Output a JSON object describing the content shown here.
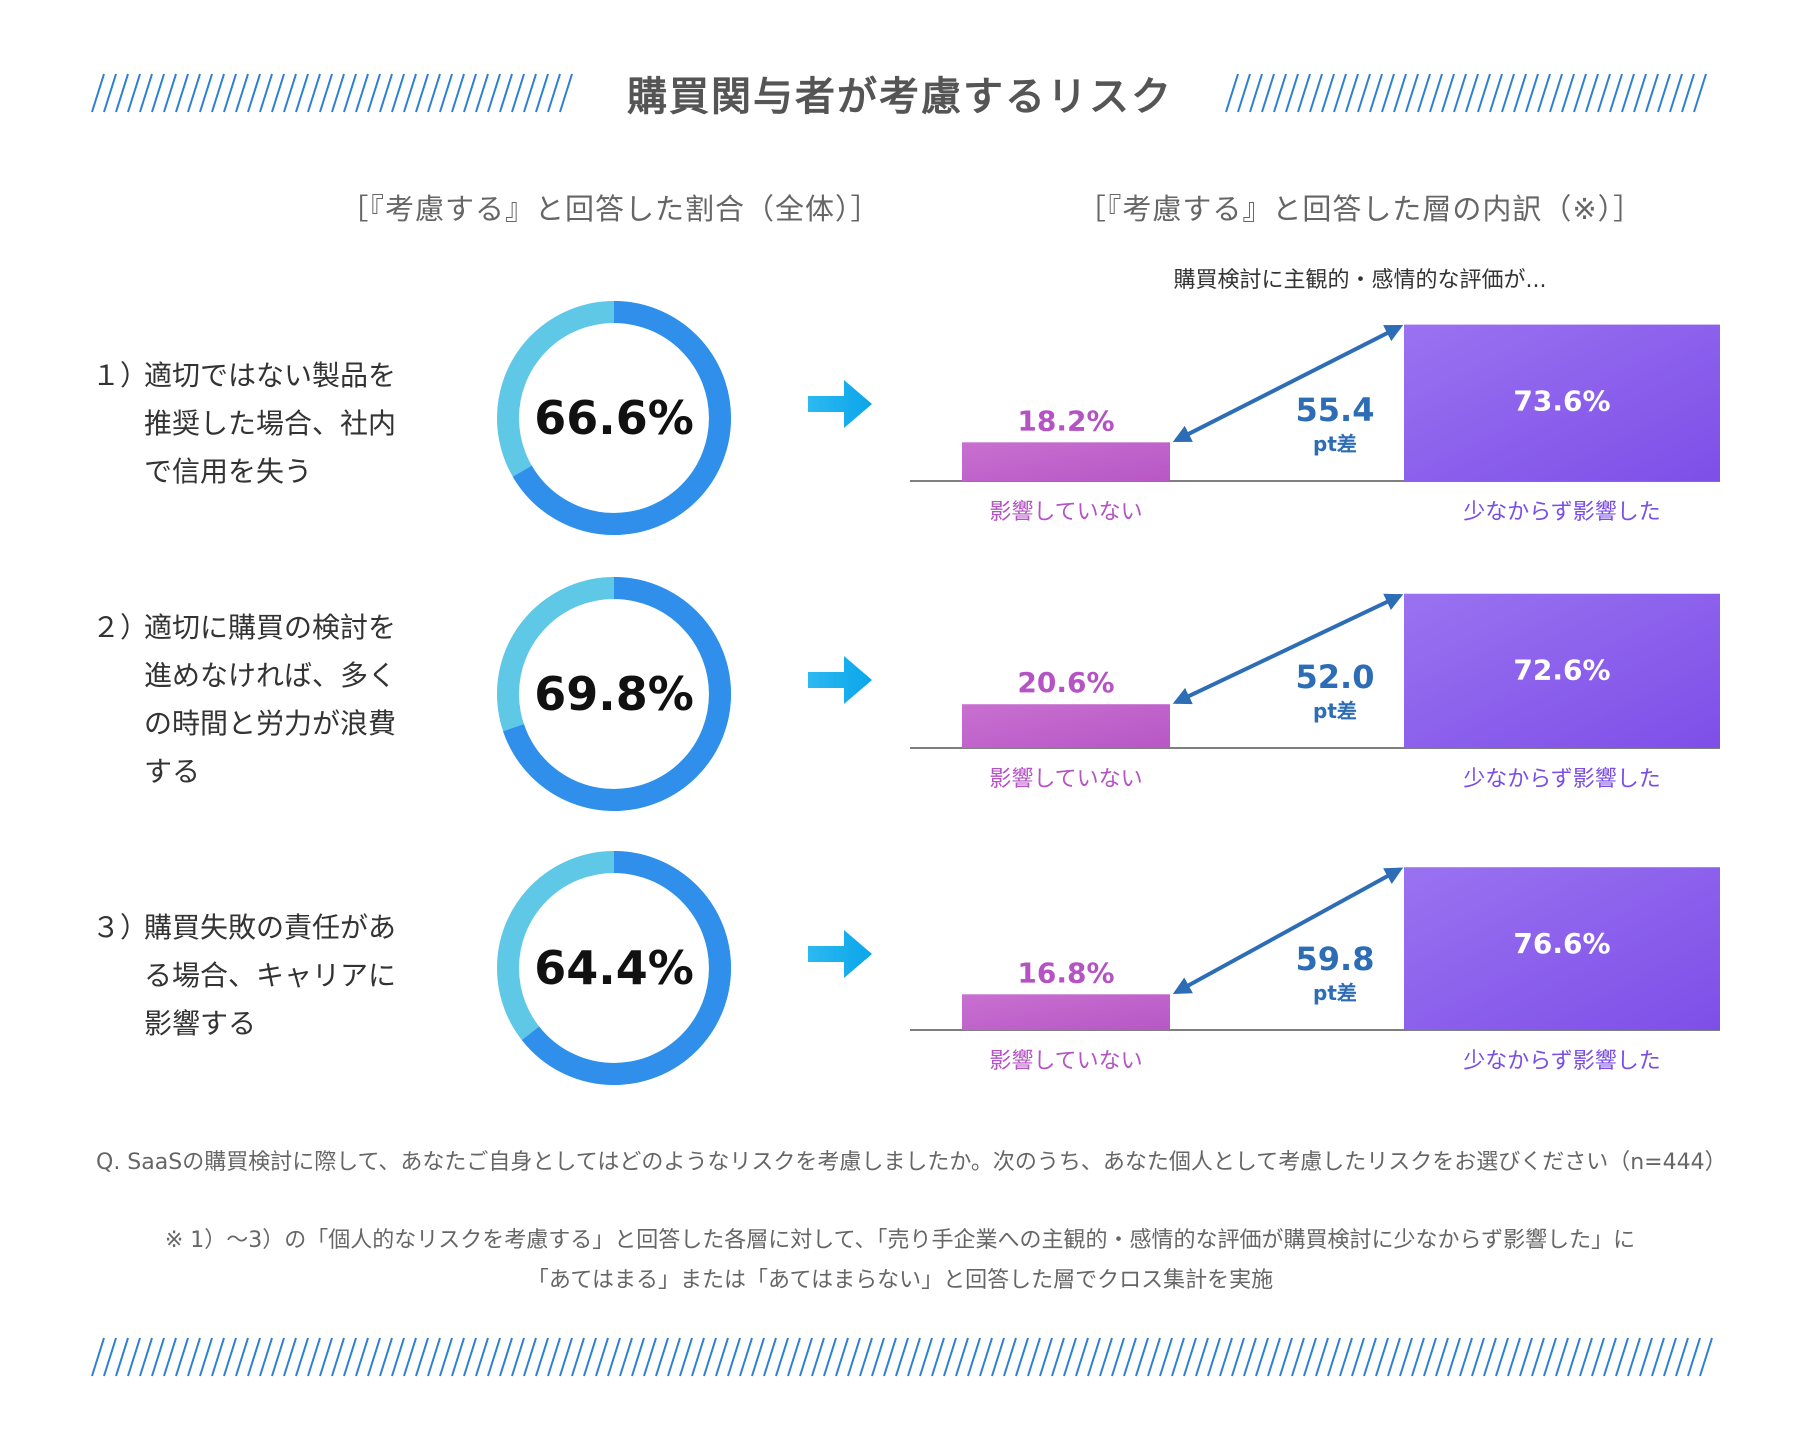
{
  "title": "購買関与者が考慮するリスク",
  "left_heading": "［『考慮する』と回答した割合（全体）］",
  "right_heading": "［『考慮する』と回答した層の内訳（※）］",
  "right_subheading": "購買検討に主観的・感情的な評価が...",
  "rows": [
    {
      "number": "１）",
      "label_lines": [
        "適切ではない製品を",
        "推奨した場合、社内",
        "で信用を失う"
      ]
    },
    {
      "number": "２）",
      "label_lines": [
        "適切に購買の検討を",
        "進めなければ、多く",
        "の時間と労力が浪費",
        "する"
      ]
    },
    {
      "number": "３）",
      "label_lines": [
        "購買失敗の責任があ",
        "る場合、キャリアに",
        "影響する"
      ]
    }
  ],
  "footnote_question": "Q. SaaSの購買検討に際して、あなたご自身としてはどのようなリスクを考慮しましたか。次のうち、あなた個人として考慮したリスクをお選びください（n=444）",
  "footnote_note_line1": "※ 1）〜3）の「個人的なリスクを考慮する」と回答した各層に対して、「売り手企業への主観的・感情的な評価が購買検討に少なからず影響した」に",
  "footnote_note_line2": "「あてはまる」または「あてはまらない」と回答した層でクロス集計を実施",
  "colors": {
    "ring_light": "#5ec8e6",
    "ring_dark": "#2f8fea",
    "ring_track": "#e8f2fb",
    "arrow_cyan": "#19b6ee",
    "bar_low": "#c163cc",
    "bar_high": "#8659ee",
    "label_low": "#b552c4",
    "label_high": "#7a4ee6",
    "diff": "#2d6db5",
    "stripe": "#2b7fd4"
  },
  "chart_data": [
    {
      "type": "pie",
      "subtype": "donut",
      "value_label": "66.6%",
      "value": 66.6,
      "bars": {
        "type": "bar",
        "categories": [
          "影響していない",
          "少なからず影響した"
        ],
        "values": [
          18.2,
          73.6
        ],
        "value_labels": [
          "18.2%",
          "73.6%"
        ],
        "diff_value": "55.4",
        "diff_unit": "pt差",
        "ylim": [
          0,
          80
        ]
      }
    },
    {
      "type": "pie",
      "subtype": "donut",
      "value_label": "69.8%",
      "value": 69.8,
      "bars": {
        "type": "bar",
        "categories": [
          "影響していない",
          "少なからず影響した"
        ],
        "values": [
          20.6,
          72.6
        ],
        "value_labels": [
          "20.6%",
          "72.6%"
        ],
        "diff_value": "52.0",
        "diff_unit": "pt差",
        "ylim": [
          0,
          80
        ]
      }
    },
    {
      "type": "pie",
      "subtype": "donut",
      "value_label": "64.4%",
      "value": 64.4,
      "bars": {
        "type": "bar",
        "categories": [
          "影響していない",
          "少なからず影響した"
        ],
        "values": [
          16.8,
          76.6
        ],
        "value_labels": [
          "16.8%",
          "76.6%"
        ],
        "diff_value": "59.8",
        "diff_unit": "pt差",
        "ylim": [
          0,
          80
        ]
      }
    }
  ]
}
